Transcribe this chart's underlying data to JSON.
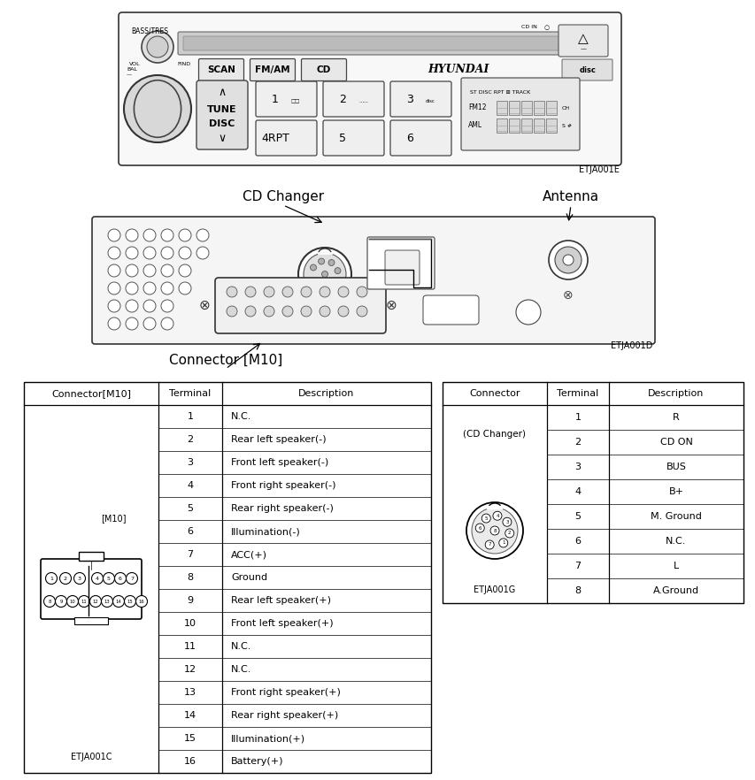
{
  "bg_color": "#ffffff",
  "m10_terminals": [
    1,
    2,
    3,
    4,
    5,
    6,
    7,
    8,
    9,
    10,
    11,
    12,
    13,
    14,
    15,
    16
  ],
  "m10_descriptions": [
    "N.C.",
    "Rear left speaker(-)",
    "Front left speaker(-)",
    "Front right speaker(-)",
    "Rear right speaker(-)",
    "Illumination(-)",
    "ACC(+)",
    "Ground",
    "Rear left speaker(+)",
    "Front left speaker(+)",
    "N.C.",
    "N.C.",
    "Front right speaker(+)",
    "Rear right speaker(+)",
    "Illumination(+)",
    "Battery(+)"
  ],
  "cd_terminals": [
    1,
    2,
    3,
    4,
    5,
    6,
    7,
    8
  ],
  "cd_descriptions": [
    "R",
    "CD ON",
    "BUS",
    "B+",
    "M. Ground",
    "N.C.",
    "L",
    "A.Ground"
  ],
  "etja001e": "ETJA001E",
  "etja001d": "ETJA001D",
  "etja001c": "ETJA001C",
  "etja001g": "ETJA001G",
  "label_cd_changer": "CD Changer",
  "label_antenna": "Antenna",
  "label_connector_m10": "Connector [M10]",
  "col1_header": "Connector[M10]",
  "col2_header": "Terminal",
  "col3_header": "Description",
  "col4_header": "Connector",
  "col5_header": "Terminal",
  "col6_header": "Description",
  "cd_changer_label": "(CD Changer)",
  "m10_label": "[M10]",
  "bass_tres": "BASS/TRES",
  "cd_in": "CD IN",
  "vol": "VOL",
  "bal": "BAL",
  "find": "FIND",
  "hyundai": "HYUNDAI",
  "scan": "SCAN",
  "fmam": "FM/AM",
  "cd": "CD",
  "tune": "TUNE",
  "disc": "DISC"
}
